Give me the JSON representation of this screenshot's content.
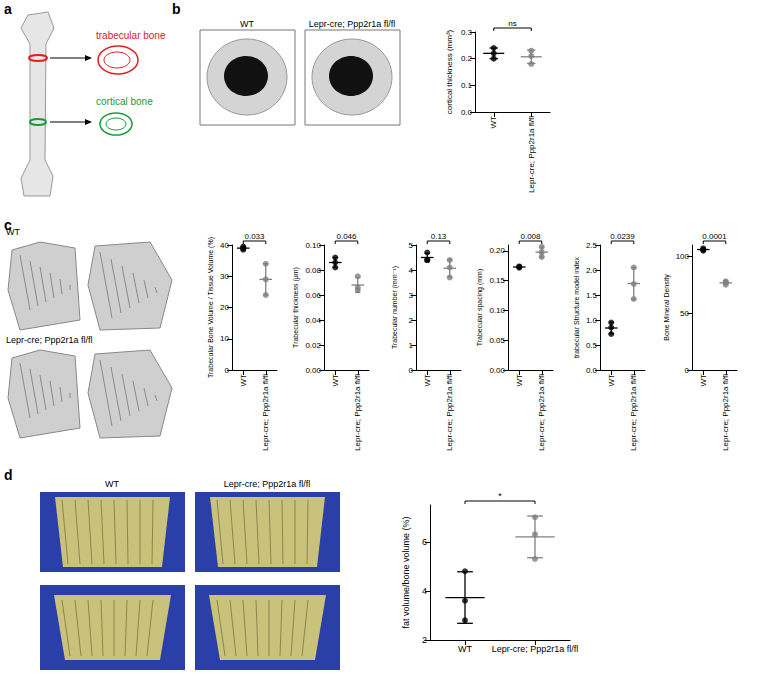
{
  "panels": [
    {
      "label": "a",
      "texts": [
        "trabecular bone",
        "cortical bone"
      ]
    },
    {
      "label": "b",
      "image_labels": [
        "WT",
        "Lepr-cre; Ppp2r1a fl/fl"
      ]
    },
    {
      "label": "c",
      "image_labels": [
        "WT",
        "Lepr-cre; Ppp2r1a fl/fl"
      ]
    },
    {
      "label": "d",
      "image_labels": [
        "WT",
        "Lepr-cre; Ppp2r1a fl/fl"
      ]
    }
  ],
  "chart_data": [
    {
      "type": "scatter",
      "y_label": "cortical thickness (mm³)",
      "categories": [
        "WT",
        "Lepr-cre; Ppp2r1a fl/fl"
      ],
      "colors": [
        "#000000",
        "#808080"
      ],
      "values": [
        [
          0.24,
          0.22,
          0.2
        ],
        [
          0.23,
          0.21,
          0.18
        ]
      ],
      "means": [
        0.22,
        0.207
      ],
      "errors": [
        0.02,
        0.025
      ],
      "ylim": [
        0,
        0.3
      ],
      "yticks": [
        {
          "value": 0,
          "label": "0.0"
        },
        {
          "value": 0.1,
          "label": "0.1"
        },
        {
          "value": 0.2,
          "label": "0.2"
        },
        {
          "value": 0.3,
          "label": "0.3"
        }
      ],
      "annotation": "ns",
      "grid": false
    },
    {
      "type": "scatter",
      "y_label": "Trabecular Bone Volume / Tissue Volume (%)",
      "categories": [
        "WT",
        "Lepr-cre; Ppp2r1a fl/fl"
      ],
      "colors": [
        "#000000",
        "#808080"
      ],
      "values": [
        [
          39.5,
          38.5,
          39
        ],
        [
          34,
          29,
          24
        ]
      ],
      "means": [
        39,
        29
      ],
      "errors": [
        0.5,
        5
      ],
      "ylim": [
        0,
        40
      ],
      "yticks": [
        0,
        10,
        20,
        30,
        40
      ],
      "annotation": "0.033",
      "grid": false
    },
    {
      "type": "scatter",
      "y_label": "Trabecular thickness (μm)",
      "categories": [
        "WT",
        "Lepr-cre; Ppp2r1a fl/fl"
      ],
      "colors": [
        "#000000",
        "#808080"
      ],
      "values": [
        [
          0.09,
          0.086,
          0.082
        ],
        [
          0.075,
          0.066,
          0.064
        ]
      ],
      "means": [
        0.086,
        0.068
      ],
      "errors": [
        0.004,
        0.006
      ],
      "ylim": [
        0,
        0.1
      ],
      "yticks": [
        {
          "value": 0,
          "label": "0.00"
        },
        {
          "value": 0.02,
          "label": "0.02"
        },
        {
          "value": 0.04,
          "label": "0.04"
        },
        {
          "value": 0.06,
          "label": "0.06"
        },
        {
          "value": 0.08,
          "label": "0.08"
        },
        {
          "value": 0.1,
          "label": "0.10"
        }
      ],
      "annotation": "0.046",
      "grid": false
    },
    {
      "type": "scatter",
      "y_label": "Trabecular number (mm⁻¹)",
      "categories": [
        "WT",
        "Lepr-cre; Ppp2r1a fl/fl"
      ],
      "colors": [
        "#000000",
        "#808080"
      ],
      "values": [
        [
          4.7,
          4.4,
          4.4
        ],
        [
          4.4,
          4.1,
          3.7
        ]
      ],
      "means": [
        4.5,
        4.07
      ],
      "errors": [
        0.17,
        0.35
      ],
      "ylim": [
        0,
        5
      ],
      "yticks": [
        0,
        1,
        2,
        3,
        4,
        5
      ],
      "annotation": "0.13",
      "grid": false
    },
    {
      "type": "scatter",
      "y_label": "Trabecular spacing (mm)",
      "categories": [
        "WT",
        "Lepr-cre; Ppp2r1a fl/fl"
      ],
      "colors": [
        "#000000",
        "#808080"
      ],
      "values": [
        [
          0.174,
          0.172,
          0.173
        ],
        [
          0.207,
          0.198,
          0.19
        ]
      ],
      "means": [
        0.173,
        0.198
      ],
      "errors": [
        0.001,
        0.0085
      ],
      "ylim": [
        0,
        0.21
      ],
      "yticks": [
        {
          "value": 0,
          "label": "0.00"
        },
        {
          "value": 0.05,
          "label": "0.05"
        },
        {
          "value": 0.1,
          "label": "0.10"
        },
        {
          "value": 0.15,
          "label": "0.15"
        },
        {
          "value": 0.2,
          "label": "0.20"
        }
      ],
      "annotation": "0.008",
      "grid": false
    },
    {
      "type": "scatter",
      "y_label": "trabecular Structure model index",
      "categories": [
        "WT",
        "Lepr-cre; Ppp2r1a fl/fl"
      ],
      "colors": [
        "#000000",
        "#808080"
      ],
      "values": [
        [
          0.95,
          0.85,
          0.72
        ],
        [
          2.05,
          1.72,
          1.42
        ]
      ],
      "means": [
        0.84,
        1.73
      ],
      "errors": [
        0.115,
        0.315
      ],
      "ylim": [
        0,
        2.5
      ],
      "yticks": [
        {
          "value": 0,
          "label": "0.0"
        },
        {
          "value": 0.5,
          "label": "0.5"
        },
        {
          "value": 1,
          "label": "1.0"
        },
        {
          "value": 1.5,
          "label": "1.5"
        },
        {
          "value": 2,
          "label": "2.0"
        },
        {
          "value": 2.5,
          "label": "2.5"
        }
      ],
      "annotation": "0.0239",
      "grid": false
    },
    {
      "type": "scatter",
      "y_label": "Bone Mineral Density",
      "categories": [
        "WT",
        "Lepr-cre; Ppp2r1a fl/fl"
      ],
      "colors": [
        "#000000",
        "#808080"
      ],
      "values": [
        [
          106,
          107,
          105
        ],
        [
          78,
          75,
          77
        ]
      ],
      "means": [
        106,
        76.7
      ],
      "errors": [
        1,
        1.5
      ],
      "ylim": [
        0,
        110
      ],
      "yticks": [
        0,
        50,
        100
      ],
      "annotation": "0.0001",
      "grid": false
    },
    {
      "type": "scatter",
      "y_label": "fat volume/bone volume (%)",
      "categories": [
        "WT",
        "Lepr-cre; Ppp2r1a fl/fl"
      ],
      "colors": [
        "#000000",
        "#808080"
      ],
      "values": [
        [
          4.8,
          3.6,
          2.8
        ],
        [
          7.0,
          6.3,
          5.3
        ]
      ],
      "means": [
        3.73,
        6.2
      ],
      "errors": [
        1.05,
        0.85
      ],
      "ylim": [
        2,
        7.5
      ],
      "yticks": [
        2,
        4,
        6
      ],
      "annotation": "*",
      "grid": false
    }
  ]
}
